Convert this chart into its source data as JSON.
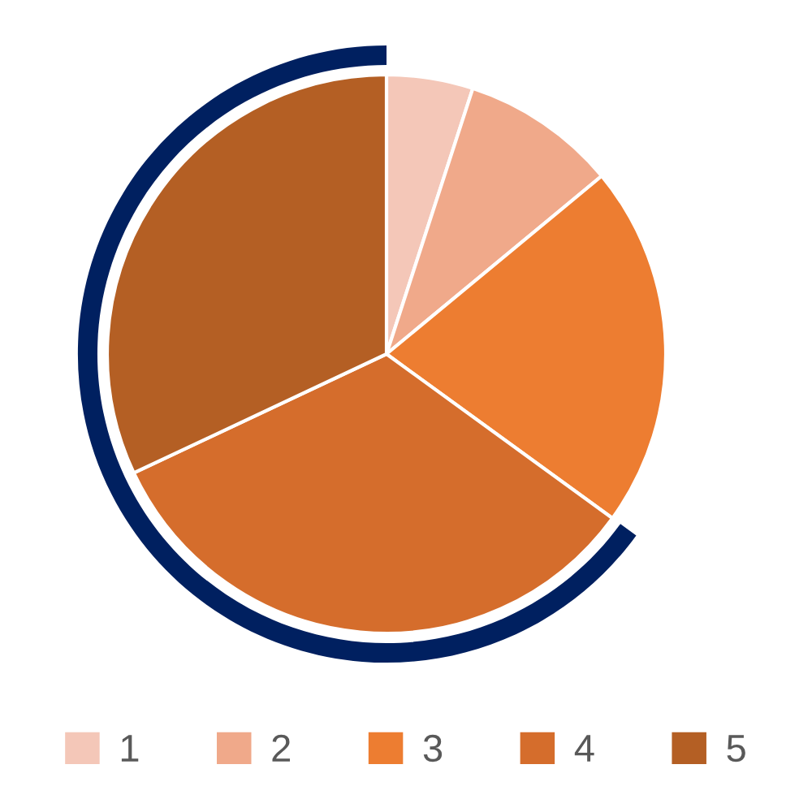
{
  "chart_data": {
    "type": "pie",
    "categories": [
      "1",
      "2",
      "3",
      "4",
      "5"
    ],
    "values": [
      5,
      9,
      21,
      33,
      32
    ],
    "colors": [
      "#f4c7b8",
      "#f0a98a",
      "#ed7d31",
      "#d56d2c",
      "#b45f24"
    ],
    "legend": "bottom"
  }
}
